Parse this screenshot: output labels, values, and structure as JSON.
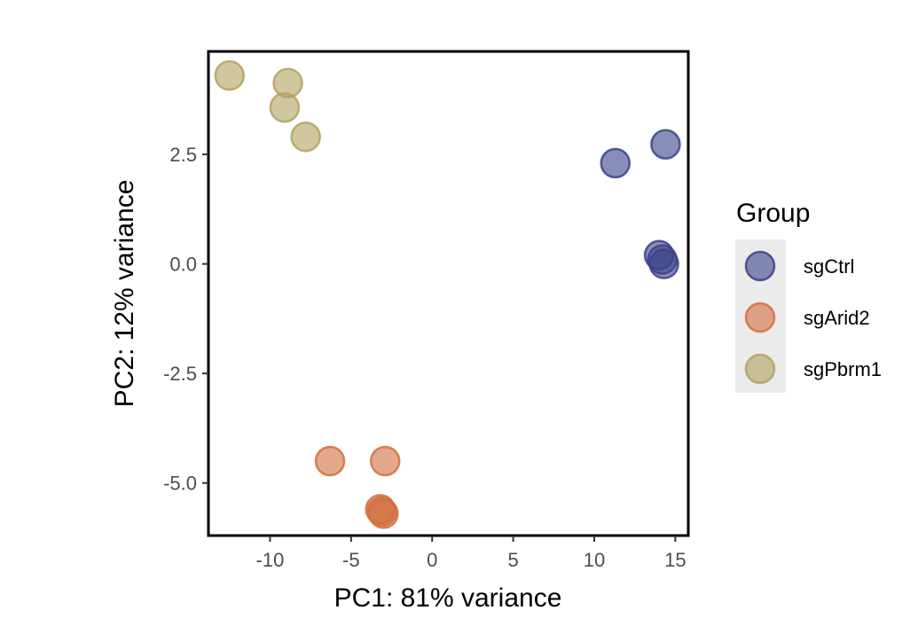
{
  "chart_data": {
    "type": "scatter",
    "xlabel": "PC1: 81% variance",
    "ylabel": "PC2: 12% variance",
    "xlim": [
      -13.8,
      15.8
    ],
    "ylim": [
      -6.2,
      4.85
    ],
    "x_ticks": [
      -10,
      -5,
      0,
      5,
      10,
      15
    ],
    "x_tick_labels": [
      "-10",
      "-5",
      "0",
      "5",
      "10",
      "15"
    ],
    "y_ticks": [
      -5.0,
      -2.5,
      0.0,
      2.5
    ],
    "y_tick_labels": [
      "-5.0",
      "-2.5",
      "0.0",
      "2.5"
    ],
    "grid": false,
    "legend": {
      "title": "Group",
      "placement": "right"
    },
    "series": [
      {
        "name": "sgCtrl",
        "color": "#3b428a",
        "points": [
          {
            "x": 11.3,
            "y": 2.3
          },
          {
            "x": 14.4,
            "y": 2.73
          },
          {
            "x": 14.0,
            "y": 0.2
          },
          {
            "x": 14.3,
            "y": 0.0
          },
          {
            "x": 14.2,
            "y": 0.1
          }
        ]
      },
      {
        "name": "sgArid2",
        "color": "#d2703f",
        "points": [
          {
            "x": -6.3,
            "y": -4.5
          },
          {
            "x": -2.9,
            "y": -4.5
          },
          {
            "x": -3.2,
            "y": -5.6
          },
          {
            "x": -3.0,
            "y": -5.7
          },
          {
            "x": -3.1,
            "y": -5.65
          }
        ]
      },
      {
        "name": "sgPbrm1",
        "color": "#b3a15f",
        "points": [
          {
            "x": -12.5,
            "y": 4.3
          },
          {
            "x": -8.9,
            "y": 4.13
          },
          {
            "x": -9.1,
            "y": 3.57
          },
          {
            "x": -7.8,
            "y": 2.9
          }
        ]
      }
    ]
  }
}
